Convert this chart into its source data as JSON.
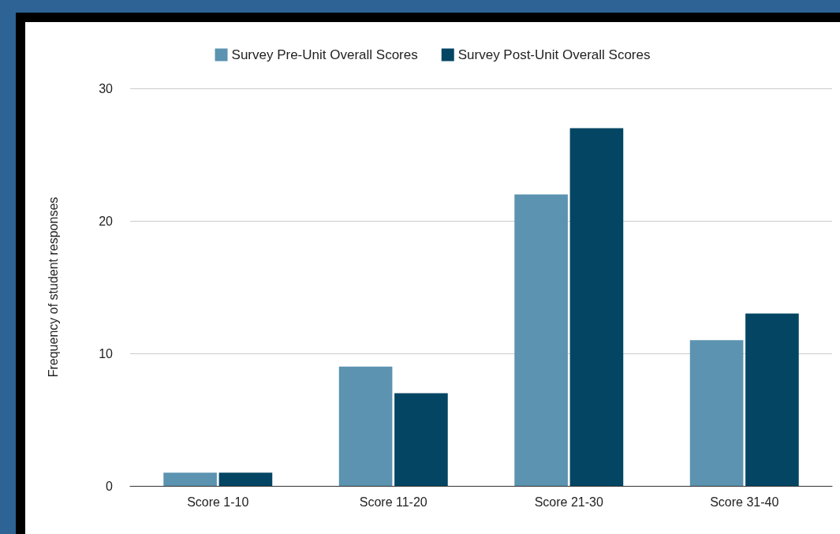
{
  "chart_data": {
    "type": "bar",
    "ylabel": "Frequency of student responses",
    "categories": [
      "Score 1-10",
      "Score 11-20",
      "Score 21-30",
      "Score 31-40"
    ],
    "series": [
      {
        "name": "Survey Pre-Unit Overall Scores",
        "color": "#5b93b0",
        "values": [
          1,
          9,
          22,
          11
        ]
      },
      {
        "name": "Survey Post-Unit Overall Scores",
        "color": "#034563",
        "values": [
          1,
          7,
          27,
          13
        ]
      }
    ],
    "ylim": [
      0,
      30
    ],
    "yticks": [
      0,
      10,
      20,
      30
    ],
    "grid": "y",
    "legend": "top"
  }
}
